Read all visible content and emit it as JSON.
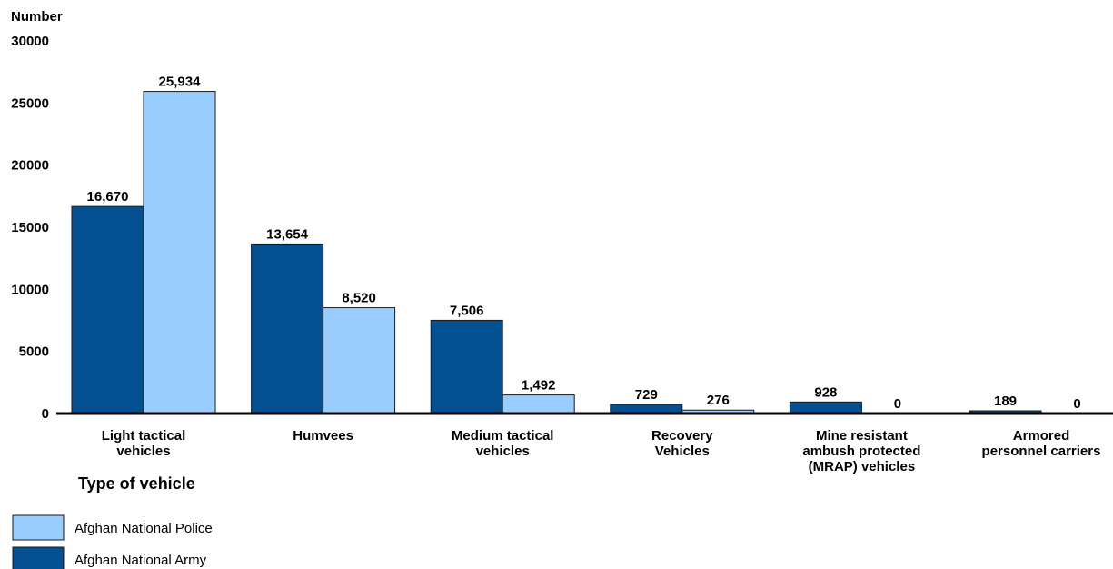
{
  "chart_data": {
    "type": "bar",
    "ylabel": "Number",
    "xlabel": "Type of vehicle",
    "ylim": [
      0,
      30000
    ],
    "yticks": [
      0,
      5000,
      10000,
      15000,
      20000,
      25000,
      30000
    ],
    "categories": [
      [
        "Light tactical",
        "vehicles"
      ],
      [
        "Humvees"
      ],
      [
        "Medium tactical",
        "vehicles"
      ],
      [
        "Recovery",
        "Vehicles"
      ],
      [
        "Mine resistant",
        "ambush protected",
        "(MRAP) vehicles"
      ],
      [
        "Armored",
        "personnel carriers"
      ]
    ],
    "series": [
      {
        "name": "Afghan National Army",
        "color": "#044f8f",
        "values": [
          16670,
          13654,
          7506,
          729,
          928,
          189
        ],
        "labels": [
          "16,670",
          "13,654",
          "7,506",
          "729",
          "928",
          "189"
        ]
      },
      {
        "name": "Afghan National Police",
        "color": "#99ccff",
        "values": [
          25934,
          8520,
          1492,
          276,
          0,
          0
        ],
        "labels": [
          "25,934",
          "8,520",
          "1,492",
          "276",
          "0",
          "0"
        ]
      }
    ],
    "legend": {
      "placement": "bottom-left",
      "order": [
        "Afghan National Police",
        "Afghan National Army"
      ]
    },
    "grid": false
  }
}
